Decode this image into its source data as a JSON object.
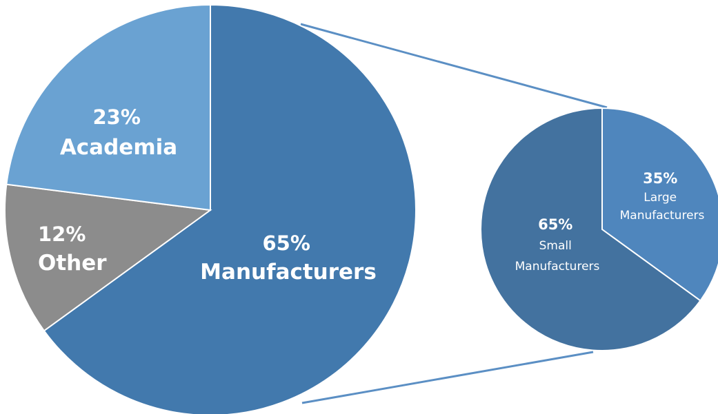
{
  "chart_data": [
    {
      "type": "pie",
      "categories": [
        "Manufacturers",
        "Other",
        "Academia"
      ],
      "values": [
        65,
        12,
        23
      ],
      "labels": [
        {
          "pct": "65%",
          "name": "Manufacturers"
        },
        {
          "pct": "12%",
          "name": "Other"
        },
        {
          "pct": "23%",
          "name": "Academia"
        }
      ],
      "colors": [
        "#4279ad",
        "#8c8c8c",
        "#6aa2d2"
      ],
      "title": ""
    },
    {
      "type": "pie",
      "breakdown_of": "Manufacturers",
      "categories": [
        "Large Manufacturers",
        "Small Manufacturers"
      ],
      "values": [
        35,
        65
      ],
      "labels": [
        {
          "pct": "35%",
          "lines": [
            "Large",
            "Manufacturers"
          ]
        },
        {
          "pct": "65%",
          "lines": [
            "Small",
            "Manufacturers"
          ]
        }
      ],
      "colors": [
        "#4f86bd",
        "#43729f"
      ],
      "title": ""
    }
  ]
}
